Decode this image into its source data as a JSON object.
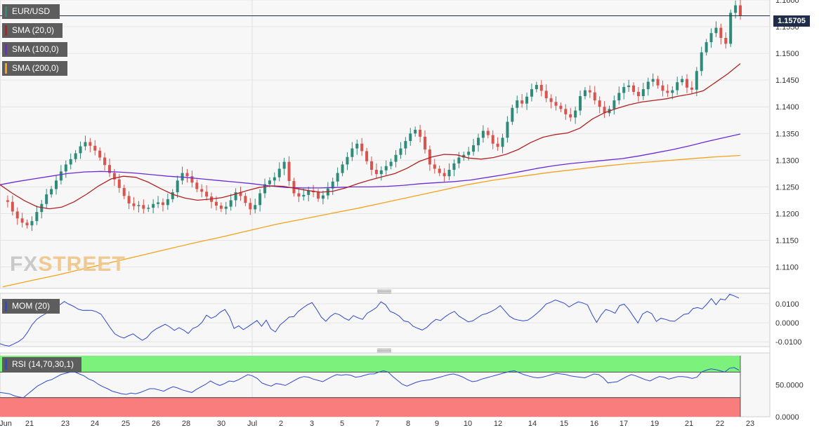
{
  "legend": {
    "pair": "EUR/USD",
    "sma20": "SMA (20,0)",
    "sma100": "SMA (100,0)",
    "sma200": "SMA (200,0)",
    "mom": "MOM (20)",
    "rsi": "RSI (14,70,30,1)"
  },
  "current_price": "1.15705",
  "watermark": {
    "part1": "FX",
    "part2": "STREET"
  },
  "colors": {
    "up": "#2e8b7a",
    "down": "#d9534f",
    "sma20": "#b22222",
    "sma100": "#6a2bd9",
    "sma200": "#f5a21b",
    "mom": "#2f49d1",
    "rsi": "#2f49d1",
    "overbought": "#7cf27c",
    "oversold": "#fa7d7d",
    "price_line": "#1f2d4a"
  },
  "chart_data": [
    {
      "type": "candlestick",
      "title": "EUR/USD",
      "ylim": [
        1.106,
        1.16
      ],
      "y_ticks": [
        "1.1600",
        "1.1550",
        "1.1500",
        "1.1450",
        "1.1400",
        "1.1350",
        "1.1300",
        "1.1250",
        "1.1200",
        "1.1150",
        "1.1100"
      ],
      "x_ticks": [
        "Jun",
        "21",
        "23",
        "24",
        "25",
        "26",
        "28",
        "30",
        "Jul",
        "2",
        "3",
        "5",
        "7",
        "8",
        "9",
        "10",
        "12",
        "14",
        "15",
        "16",
        "17",
        "19",
        "21",
        "22",
        "23"
      ],
      "last_price": 1.15705,
      "close_series": [
        1.1225,
        1.1222,
        1.1204,
        1.1191,
        1.1183,
        1.1178,
        1.1186,
        1.1203,
        1.1218,
        1.1236,
        1.1246,
        1.1262,
        1.1279,
        1.1292,
        1.1302,
        1.1313,
        1.1326,
        1.1334,
        1.1327,
        1.1318,
        1.1305,
        1.1291,
        1.1276,
        1.1264,
        1.1248,
        1.1233,
        1.1219,
        1.1214,
        1.1216,
        1.1209,
        1.1211,
        1.1218,
        1.1221,
        1.1216,
        1.1227,
        1.124,
        1.1262,
        1.1276,
        1.127,
        1.1258,
        1.1246,
        1.1241,
        1.1232,
        1.1222,
        1.1215,
        1.1209,
        1.1213,
        1.1225,
        1.124,
        1.1233,
        1.122,
        1.1208,
        1.1216,
        1.1238,
        1.1255,
        1.1262,
        1.1268,
        1.1284,
        1.1297,
        1.1261,
        1.1238,
        1.1232,
        1.1235,
        1.1243,
        1.124,
        1.1228,
        1.1234,
        1.1247,
        1.126,
        1.1276,
        1.1292,
        1.1306,
        1.1322,
        1.1331,
        1.1317,
        1.1298,
        1.1282,
        1.1274,
        1.1281,
        1.1289,
        1.1297,
        1.131,
        1.1322,
        1.1336,
        1.135,
        1.1357,
        1.1344,
        1.132,
        1.1292,
        1.1284,
        1.1276,
        1.127,
        1.1282,
        1.1294,
        1.1305,
        1.131,
        1.1316,
        1.1328,
        1.1342,
        1.1355,
        1.1347,
        1.1331,
        1.1325,
        1.1342,
        1.1372,
        1.1398,
        1.1412,
        1.1406,
        1.1419,
        1.1433,
        1.1441,
        1.143,
        1.1416,
        1.1409,
        1.1402,
        1.1396,
        1.1386,
        1.138,
        1.1393,
        1.142,
        1.1431,
        1.1427,
        1.1412,
        1.14,
        1.1388,
        1.1396,
        1.1412,
        1.1426,
        1.1437,
        1.144,
        1.1428,
        1.142,
        1.1433,
        1.1447,
        1.1452,
        1.144,
        1.143,
        1.1426,
        1.1431,
        1.1446,
        1.1452,
        1.1436,
        1.1432,
        1.1467,
        1.1502,
        1.1521,
        1.1538,
        1.1548,
        1.1529,
        1.1518,
        1.1576,
        1.159,
        1.15705
      ],
      "sma20": [
        1.1254,
        1.1238,
        1.1224,
        1.1213,
        1.1209,
        1.1212,
        1.1222,
        1.1236,
        1.1252,
        1.1265,
        1.127,
        1.1268,
        1.1259,
        1.1247,
        1.1236,
        1.1229,
        1.1225,
        1.1227,
        1.123,
        1.1236,
        1.1243,
        1.1249,
        1.1252,
        1.1251,
        1.1247,
        1.1243,
        1.124,
        1.1242,
        1.1248,
        1.1256,
        1.1263,
        1.1269,
        1.1275,
        1.1285,
        1.1298,
        1.1306,
        1.1311,
        1.131,
        1.1304,
        1.1302,
        1.1305,
        1.1311,
        1.132,
        1.1333,
        1.1343,
        1.1348,
        1.1351,
        1.136,
        1.1377,
        1.1389,
        1.1397,
        1.1404,
        1.1409,
        1.1412,
        1.1415,
        1.142,
        1.1424,
        1.143,
        1.1446,
        1.1462,
        1.1481
      ],
      "sma100": [
        1.1254,
        1.126,
        1.1265,
        1.127,
        1.1275,
        1.1278,
        1.1279,
        1.1278,
        1.1276,
        1.1273,
        1.127,
        1.1268,
        1.1265,
        1.1262,
        1.1259,
        1.1256,
        1.1252,
        1.1249,
        1.1248,
        1.1248,
        1.1249,
        1.125,
        1.125,
        1.1251,
        1.1253,
        1.1256,
        1.1258,
        1.126,
        1.1263,
        1.1268,
        1.1273,
        1.1279,
        1.1285,
        1.129,
        1.1294,
        1.1297,
        1.13,
        1.1303,
        1.1308,
        1.1314,
        1.132,
        1.1327,
        1.1335,
        1.1342,
        1.1349
      ],
      "sma200": [
        1.1063,
        1.1074,
        1.1085,
        1.1097,
        1.1109,
        1.1121,
        1.1133,
        1.1145,
        1.1156,
        1.1168,
        1.118,
        1.119,
        1.12,
        1.121,
        1.1221,
        1.1232,
        1.1243,
        1.1254,
        1.1263,
        1.127,
        1.1277,
        1.1283,
        1.1289,
        1.1294,
        1.1298,
        1.1302,
        1.1306,
        1.1309
      ]
    },
    {
      "type": "line",
      "title": "MOM (20)",
      "ylim": [
        -0.0125,
        0.0155
      ],
      "y_ticks": [
        "0.0100",
        "0.0000",
        "-0.0100"
      ],
      "values": [
        -0.011,
        -0.0118,
        -0.0122,
        -0.0111,
        -0.0099,
        -0.0082,
        -0.005,
        -0.001,
        0.0018,
        0.0035,
        0.0048,
        0.0062,
        0.0072,
        0.0094,
        0.0112,
        0.0098,
        0.0087,
        0.0072,
        0.0065,
        0.0066,
        0.0065,
        0.0058,
        0.0045,
        0.001,
        -0.0025,
        -0.0058,
        -0.0072,
        -0.008,
        -0.0068,
        -0.0058,
        -0.0076,
        -0.0092,
        -0.0078,
        -0.005,
        -0.0032,
        -0.002,
        -0.0008,
        -0.0022,
        -0.004,
        -0.0026,
        -0.0038,
        -0.0056,
        -0.003,
        -0.002,
        0.0002,
        0.004,
        0.0024,
        0.0034,
        0.0056,
        0.007,
        0.0032,
        -0.003,
        -0.0016,
        -0.0036,
        -0.0021,
        -0.0004,
        0.0012,
        -0.0018,
        0.0014,
        -0.0031,
        -0.0048,
        -0.0012,
        0.0008,
        0.003,
        0.0032,
        0.006,
        0.0078,
        0.0095,
        0.0106,
        0.007,
        0.003,
        0.0008,
        0.0034,
        0.005,
        0.0042,
        0.0025,
        0.0013,
        0.0038,
        0.0026,
        0.0018,
        0.005,
        0.0064,
        0.008,
        0.011,
        0.0095,
        0.006,
        0.005,
        0.0035,
        0.001,
        0.0005,
        -0.0018,
        -0.0029,
        -0.0038,
        -0.0024,
        0.0,
        0.0018,
        0.0012,
        0.0032,
        0.0048,
        0.006,
        0.0035,
        0.002,
        0.0005,
        0.001,
        0.0026,
        0.0042,
        0.0048,
        0.0059,
        0.0072,
        0.009,
        0.0062,
        0.0035,
        0.002,
        0.0014,
        0.001,
        0.0014,
        0.003,
        0.005,
        0.0072,
        0.0099,
        0.0108,
        0.012,
        0.0111,
        0.0102,
        0.0083,
        0.0098,
        0.011,
        0.0104,
        0.0094,
        0.0044,
        0.0002,
        0.0042,
        0.007,
        0.0062,
        0.005,
        0.009,
        0.0098,
        0.007,
        0.0034,
        -0.0001,
        0.0046,
        0.006,
        0.0048,
        0.0007,
        0.0024,
        0.0018,
        0.001,
        0.0008,
        0.0026,
        0.0044,
        0.0048,
        0.0075,
        0.008,
        0.0073,
        0.0098,
        0.0127,
        0.0095,
        0.0125,
        0.012,
        0.015,
        0.0141,
        0.013
      ]
    },
    {
      "type": "line",
      "title": "RSI (14,70,30,1)",
      "ylim": [
        0,
        100
      ],
      "y_ticks": [
        "50.0000",
        "0.0000"
      ],
      "overbought": 70,
      "oversold": 30,
      "values": [
        38,
        37,
        36,
        33,
        31,
        30,
        36,
        42,
        48,
        52,
        56,
        58,
        62,
        66,
        68,
        70,
        70,
        67,
        64,
        59,
        56,
        51,
        47,
        44,
        40,
        38,
        36,
        35,
        37,
        36,
        38,
        41,
        44,
        44,
        42,
        40,
        44,
        47,
        45,
        42,
        40,
        38,
        43,
        47,
        51,
        56,
        52,
        49,
        52,
        56,
        55,
        58,
        62,
        66,
        64,
        60,
        53,
        50,
        48,
        52,
        51,
        49,
        53,
        57,
        61,
        63,
        62,
        59,
        57,
        55,
        59,
        63,
        66,
        65,
        66,
        65,
        62,
        63,
        65,
        67,
        67,
        70,
        72,
        70,
        63,
        57,
        51,
        48,
        51,
        54,
        56,
        57,
        58,
        60,
        62,
        64,
        66,
        67,
        65,
        62,
        58,
        55,
        56,
        59,
        61,
        63,
        65,
        67,
        69,
        71,
        72,
        69,
        66,
        64,
        62,
        61,
        62,
        64,
        66,
        68,
        67,
        66,
        64,
        63,
        62,
        61,
        64,
        67,
        66,
        61,
        53,
        54,
        55,
        59,
        63,
        66,
        64,
        61,
        58,
        56,
        60,
        63,
        62,
        59,
        61,
        63,
        63,
        62,
        60,
        62,
        70,
        73,
        75,
        74,
        72,
        70,
        76,
        77,
        73
      ]
    }
  ]
}
